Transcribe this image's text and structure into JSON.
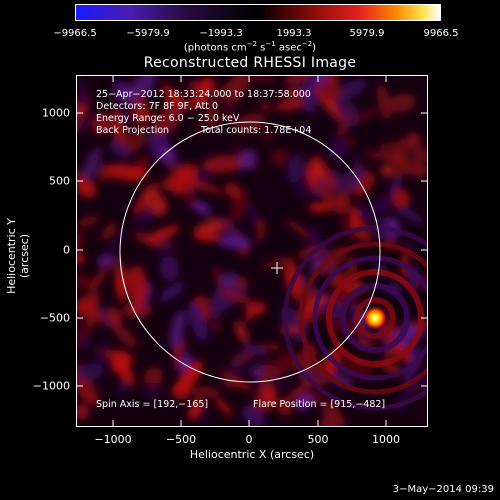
{
  "colorbar": {
    "ticks": [
      "−9966.5",
      "−5979.9",
      "−1993.3",
      "1993.3",
      "5979.9",
      "9966.5"
    ],
    "units_prefix": "(photons cm",
    "units_exp1": "−2",
    "units_mid": " s",
    "units_exp2": "−1",
    "units_mid2": " asec",
    "units_exp3": "−2",
    "units_suffix": ")"
  },
  "title": "Reconstructed RHESSI Image",
  "info": {
    "time_range": "25−Apr−2012 18:33:24.000 to 18:37:58.000",
    "detectors": "Detectors: 7F 8F 9F, Att 0",
    "energy": "Energy Range: 6.0 − 25.0 keV",
    "method": "Back Projection",
    "counts": "Total counts: 1.78E+04",
    "spin_axis": "Spin Axis = [192,−165]",
    "flare_position": "Flare Position = [915,−482]"
  },
  "axes": {
    "xlabel": "Heliocentric X (arcsec)",
    "ylabel": "Heliocentric Y (arcsec)",
    "xticks": [
      "−1000",
      "−500",
      "0",
      "500",
      "1000"
    ],
    "yticks": [
      "1000",
      "500",
      "0",
      "−500",
      "−1000"
    ]
  },
  "timestamp": "3−May−2014 09:39",
  "colors": {
    "background": "#000000",
    "limb_circle": "#ffffff",
    "colorbar_low": "#0000ff",
    "colorbar_mid": "#000000",
    "colorbar_high": "#ffffff"
  }
}
